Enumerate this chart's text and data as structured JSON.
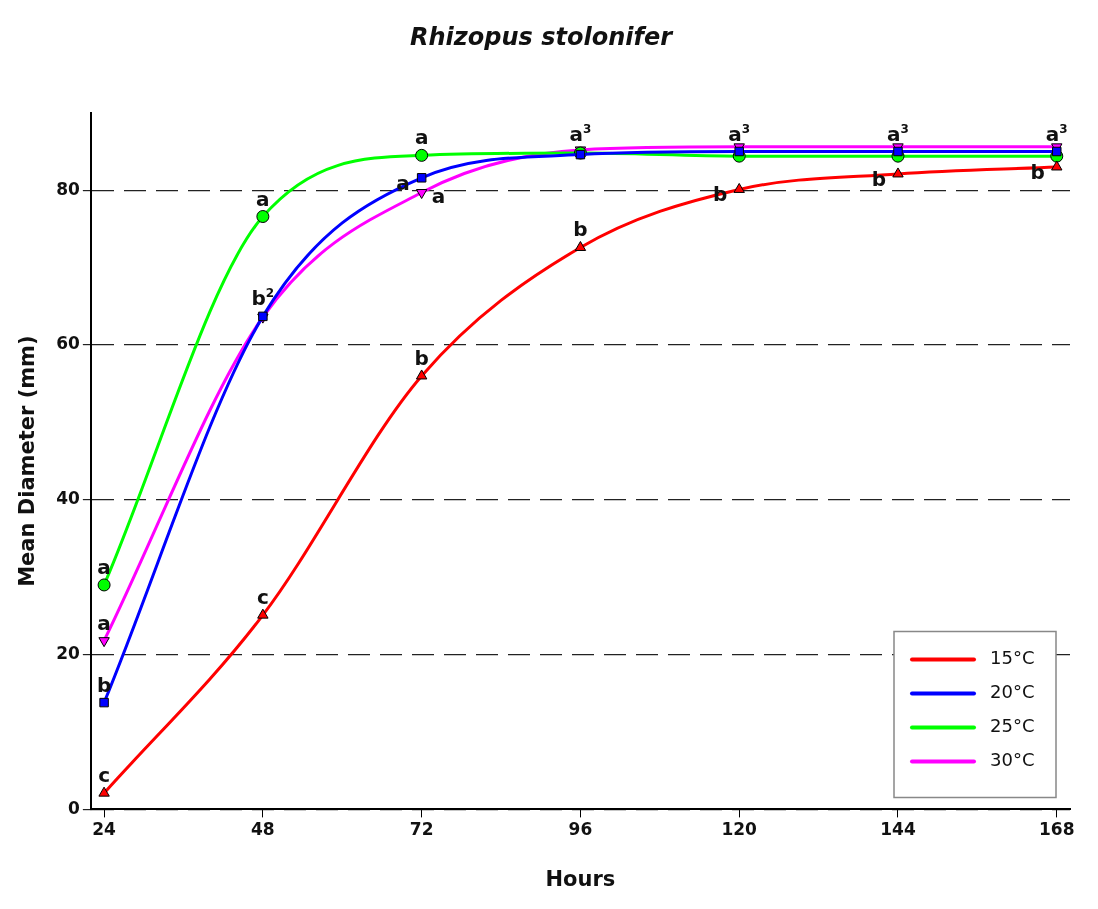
{
  "chart_data": {
    "type": "line",
    "title": "Rhizopus stolonifer",
    "xlabel": "Hours",
    "ylabel": "Mean Diameter (mm)",
    "x": [
      24,
      48,
      72,
      96,
      120,
      144,
      168
    ],
    "xlim": [
      22,
      170
    ],
    "xticks": [
      24,
      48,
      72,
      96,
      120,
      144,
      168
    ],
    "ylim": [
      0,
      90
    ],
    "yticks": [
      0,
      20,
      40,
      60,
      80
    ],
    "grid": "y",
    "legend": "bottom right",
    "series": [
      {
        "name": "15°C",
        "color": "#ff0000",
        "marker": "triangle",
        "values": [
          2.1,
          25.1,
          56,
          72.6,
          80.1,
          82.1,
          83
        ]
      },
      {
        "name": "20°C",
        "color": "#0000ff",
        "marker": "square",
        "values": [
          13.8,
          63.7,
          81.6,
          84.6,
          85,
          85,
          85
        ]
      },
      {
        "name": "25°C",
        "color": "#00ff00",
        "marker": "circle",
        "values": [
          29,
          76.6,
          84.5,
          84.8,
          84.4,
          84.4,
          84.4
        ]
      },
      {
        "name": "30°C",
        "color": "#ff00ff",
        "marker": "triangle-down",
        "values": [
          21.8,
          63.6,
          79.7,
          85.2,
          85.6,
          85.6,
          85.6
        ]
      }
    ],
    "annotations": [
      {
        "text": "c",
        "x": 24,
        "y": 2.1
      },
      {
        "text": "b",
        "x": 24,
        "y": 13.8
      },
      {
        "text": "a",
        "x": 24,
        "y": 29
      },
      {
        "text": "a",
        "x": 24,
        "y": 21.8
      },
      {
        "text": "c",
        "x": 48,
        "y": 25.1
      },
      {
        "text": "b$^{2}$",
        "x": 48,
        "y": 63.7
      },
      {
        "text": "a",
        "x": 48,
        "y": 76.6
      },
      {
        "text": "b",
        "x": 72,
        "y": 56
      },
      {
        "text": "a",
        "x": 72,
        "y": 84.5
      },
      {
        "text": "a",
        "x": 72,
        "y": 81.6
      },
      {
        "text": "a",
        "x": 72,
        "y": 79.7
      },
      {
        "text": "b",
        "x": 96,
        "y": 72.6
      },
      {
        "text": "a$^{3}$",
        "x": 96,
        "y": 85
      },
      {
        "text": "b",
        "x": 120,
        "y": 80.1
      },
      {
        "text": "a$^{3}$",
        "x": 120,
        "y": 85
      },
      {
        "text": "b",
        "x": 144,
        "y": 82.1
      },
      {
        "text": "a$^{3}$",
        "x": 144,
        "y": 85
      },
      {
        "text": "b",
        "x": 168,
        "y": 83
      },
      {
        "text": "a$^{3}$",
        "x": 168,
        "y": 85
      }
    ]
  }
}
